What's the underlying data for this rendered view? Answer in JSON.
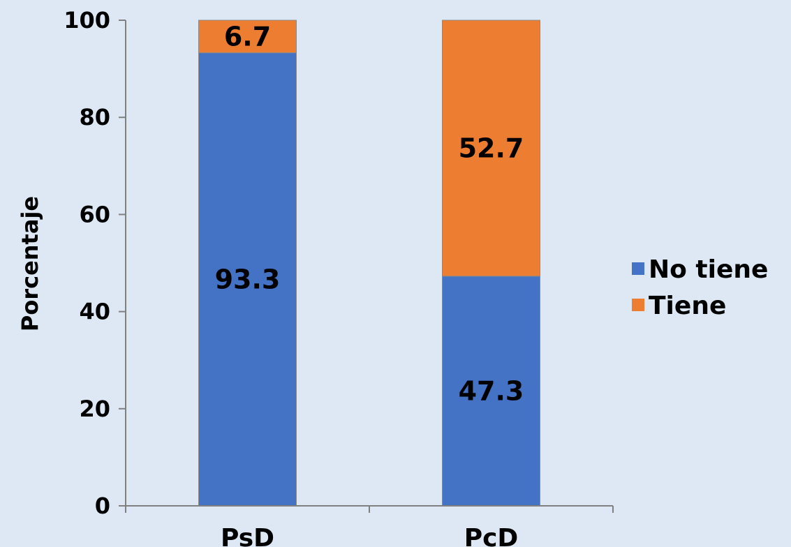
{
  "chart_data": {
    "type": "bar",
    "stacked": true,
    "categories": [
      "PsD",
      "PcD"
    ],
    "series": [
      {
        "name": "No tiene",
        "values": [
          93.3,
          47.3
        ],
        "color": "#4472c4"
      },
      {
        "name": "Tiene",
        "values": [
          6.7,
          52.7
        ],
        "color": "#ed7d31"
      }
    ],
    "data_labels": [
      [
        "93.3",
        "47.3"
      ],
      [
        "6.7",
        "52.7"
      ]
    ],
    "title": "",
    "xlabel": "",
    "ylabel": "Porcentaje",
    "ylim": [
      0,
      100
    ],
    "yticks": [
      "0",
      "20",
      "40",
      "60",
      "80",
      "100"
    ],
    "grid": false,
    "legend_position": "right"
  }
}
